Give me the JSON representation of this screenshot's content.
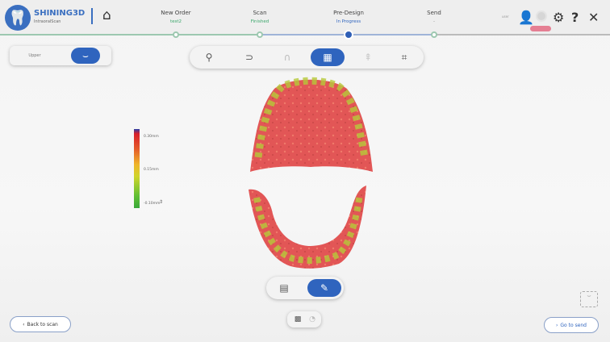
{
  "header": {
    "brand": "SHINING3D",
    "brand_sub": "IntraoralScan",
    "steps": [
      {
        "title": "New Order",
        "status": "test2",
        "color": "#3aa66a"
      },
      {
        "title": "Scan",
        "status": "Finished",
        "color": "#3aa66a"
      },
      {
        "title": "Pre-Design",
        "status": "In Progress",
        "color": "#2f64be"
      },
      {
        "title": "Send",
        "status": "-",
        "color": "#888"
      }
    ],
    "user_label": "user"
  },
  "left_toggle": {
    "label": "Upper"
  },
  "colorbar": {
    "max": "0.30mm",
    "mid": "0.15mm",
    "min": "-0.10mm"
  },
  "buttons": {
    "back": "Back to scan",
    "next": "Go to send"
  },
  "colors": {
    "accent": "#2f64be",
    "progress": "#9dc8b0"
  }
}
